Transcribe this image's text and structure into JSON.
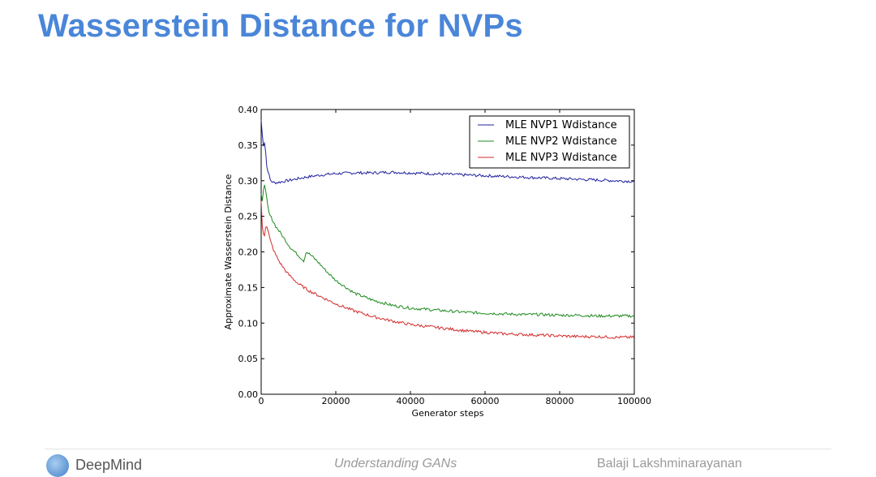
{
  "slide": {
    "title": "Wasserstein Distance for NVPs"
  },
  "footer": {
    "brand": "DeepMind",
    "center": "Understanding GANs",
    "right": "Balaji Lakshminarayanan"
  },
  "colors": {
    "title": "#4a86d8",
    "series": [
      "#1f1f9e",
      "#1f8a1f",
      "#d42a2a"
    ]
  },
  "chart_data": {
    "type": "line",
    "title": "",
    "xlabel": "Generator steps",
    "ylabel": "Approximate Wasserstein Distance",
    "xlim": [
      0,
      100000
    ],
    "ylim": [
      0.0,
      0.4
    ],
    "xticks": [
      "0",
      "20000",
      "40000",
      "60000",
      "80000",
      "100000"
    ],
    "yticks": [
      "0.00",
      "0.05",
      "0.10",
      "0.15",
      "0.20",
      "0.25",
      "0.30",
      "0.35",
      "0.40"
    ],
    "grid": false,
    "legend_position": "top-right",
    "series": [
      {
        "name": "MLE NVP1 Wdistance",
        "color": "#1f1f9e",
        "x": [
          0,
          500,
          1000,
          1500,
          2500,
          3500,
          5000,
          8000,
          12000,
          16000,
          20000,
          25000,
          30000,
          35000,
          40000,
          45000,
          50000,
          55000,
          60000,
          65000,
          70000,
          75000,
          80000,
          85000,
          90000,
          95000,
          100000
        ],
        "y": [
          0.385,
          0.35,
          0.355,
          0.32,
          0.3,
          0.297,
          0.298,
          0.301,
          0.305,
          0.308,
          0.31,
          0.311,
          0.311,
          0.312,
          0.311,
          0.31,
          0.309,
          0.308,
          0.307,
          0.306,
          0.305,
          0.304,
          0.303,
          0.302,
          0.301,
          0.3,
          0.299
        ]
      },
      {
        "name": "MLE NVP2 Wdistance",
        "color": "#1f8a1f",
        "x": [
          0,
          300,
          800,
          1200,
          2000,
          3000,
          4000,
          5000,
          6000,
          8000,
          10000,
          11500,
          12000,
          13000,
          15000,
          18000,
          20000,
          25000,
          30000,
          35000,
          40000,
          45000,
          50000,
          55000,
          60000,
          65000,
          70000,
          75000,
          80000,
          85000,
          90000,
          95000,
          100000
        ],
        "y": [
          0.28,
          0.27,
          0.3,
          0.285,
          0.255,
          0.245,
          0.235,
          0.228,
          0.22,
          0.205,
          0.195,
          0.187,
          0.2,
          0.197,
          0.187,
          0.17,
          0.16,
          0.142,
          0.132,
          0.125,
          0.121,
          0.119,
          0.117,
          0.115,
          0.114,
          0.113,
          0.112,
          0.112,
          0.111,
          0.111,
          0.11,
          0.11,
          0.11
        ]
      },
      {
        "name": "MLE NVP3 Wdistance",
        "color": "#d42a2a",
        "x": [
          0,
          300,
          800,
          1300,
          1800,
          2500,
          3500,
          5000,
          7000,
          10000,
          13000,
          16000,
          20000,
          25000,
          30000,
          35000,
          40000,
          45000,
          50000,
          55000,
          60000,
          65000,
          70000,
          75000,
          80000,
          85000,
          90000,
          95000,
          100000
        ],
        "y": [
          0.27,
          0.235,
          0.22,
          0.24,
          0.23,
          0.215,
          0.2,
          0.185,
          0.17,
          0.155,
          0.145,
          0.137,
          0.127,
          0.117,
          0.109,
          0.103,
          0.098,
          0.095,
          0.092,
          0.089,
          0.087,
          0.085,
          0.084,
          0.083,
          0.082,
          0.081,
          0.081,
          0.08,
          0.08
        ]
      }
    ]
  }
}
